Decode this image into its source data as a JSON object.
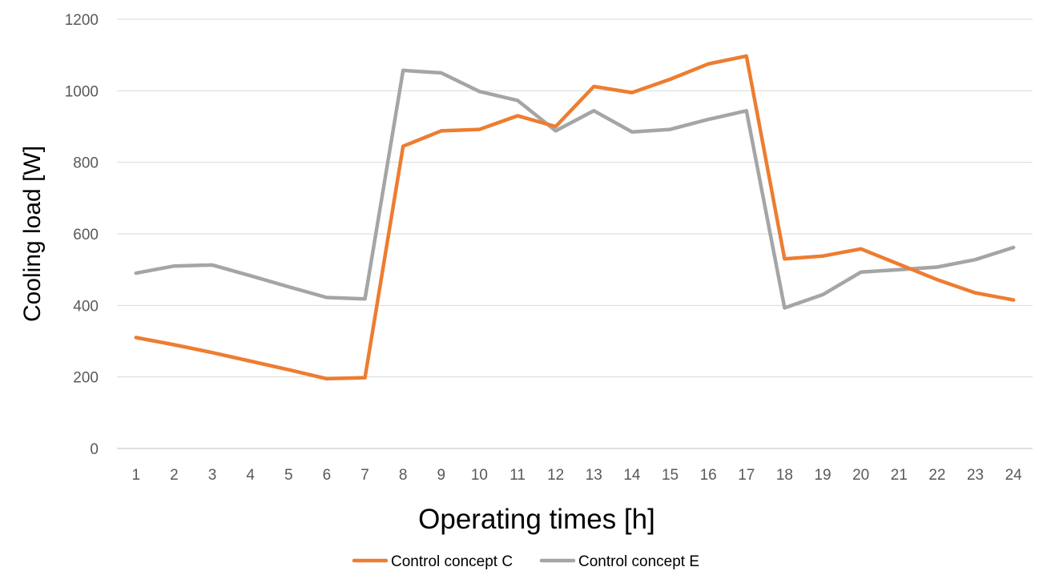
{
  "chart_data": {
    "type": "line",
    "title": "",
    "xlabel": "Operating times [h]",
    "ylabel": "Cooling load [W]",
    "x": [
      1,
      2,
      3,
      4,
      5,
      6,
      7,
      8,
      9,
      10,
      11,
      12,
      13,
      14,
      15,
      16,
      17,
      18,
      19,
      20,
      21,
      22,
      23,
      24
    ],
    "ylim": [
      0,
      1200
    ],
    "yticks": [
      0,
      200,
      400,
      600,
      800,
      1000,
      1200
    ],
    "grid": true,
    "legend_position": "bottom",
    "series": [
      {
        "name": "Control concept C",
        "color": "#ED7D31",
        "values": [
          310,
          290,
          268,
          244,
          220,
          195,
          198,
          845,
          888,
          892,
          930,
          900,
          1012,
          995,
          1032,
          1075,
          1097,
          530,
          538,
          558,
          515,
          472,
          435,
          415
        ]
      },
      {
        "name": "Control concept E",
        "color": "#A5A5A5",
        "values": [
          490,
          510,
          513,
          483,
          452,
          422,
          418,
          1057,
          1050,
          998,
          973,
          888,
          944,
          885,
          892,
          920,
          944,
          393,
          430,
          493,
          500,
          507,
          528,
          562
        ]
      }
    ]
  }
}
